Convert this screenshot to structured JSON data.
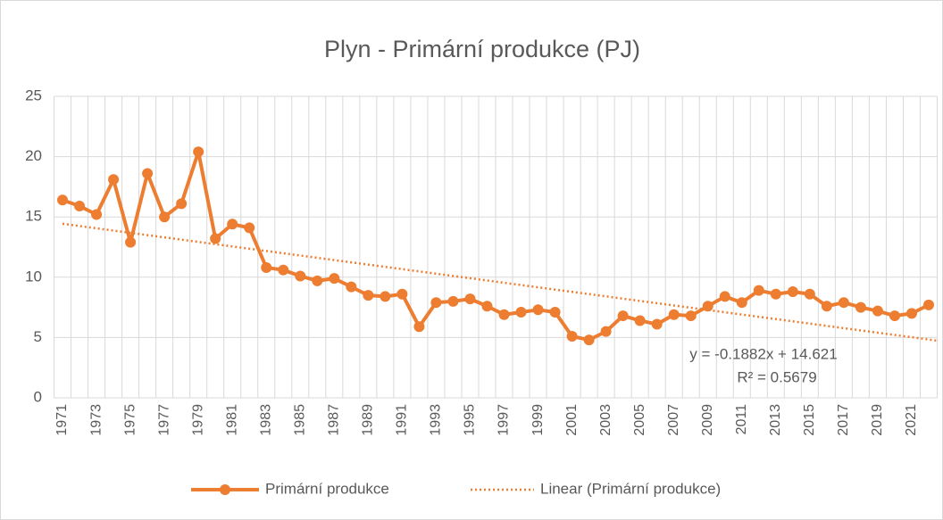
{
  "chart_data": {
    "type": "line",
    "title": "Plyn - Primární produkce (PJ)",
    "categories": [
      "1971",
      null,
      "1973",
      null,
      "1975",
      null,
      "1977",
      null,
      "1979",
      null,
      "1981",
      null,
      "1983",
      null,
      "1985",
      null,
      "1987",
      null,
      "1989",
      null,
      "1991",
      null,
      "1993",
      null,
      "1995",
      null,
      "1997",
      null,
      "1999",
      null,
      "2001",
      null,
      "2003",
      null,
      "2005",
      null,
      "2007",
      null,
      "2009",
      null,
      "2011",
      null,
      "2013",
      null,
      "2015",
      null,
      "2017",
      null,
      "2019",
      null,
      "2021",
      null
    ],
    "series": [
      {
        "name": "Primární produkce",
        "color": "#ed7d31",
        "values": [
          16.4,
          15.9,
          15.2,
          18.1,
          12.9,
          18.6,
          15.0,
          16.1,
          20.4,
          13.2,
          14.4,
          14.1,
          10.8,
          10.6,
          10.1,
          9.7,
          9.9,
          9.2,
          8.5,
          8.4,
          8.6,
          5.9,
          7.9,
          8.0,
          8.2,
          7.6,
          6.9,
          7.1,
          7.3,
          7.1,
          5.1,
          4.8,
          5.5,
          6.8,
          6.4,
          6.1,
          6.9,
          6.8,
          7.6,
          8.4,
          7.9,
          8.9,
          8.6,
          8.8,
          8.6,
          7.6,
          7.9,
          7.5,
          7.2,
          6.8,
          7.0,
          7.7
        ]
      }
    ],
    "trendline": {
      "name": "Linear (Primární produkce)",
      "color": "#ed7d31",
      "slope": -0.1882,
      "intercept": 14.621,
      "equation": "y = -0.1882x + 14.621",
      "r2_label": "R² = 0.5679"
    },
    "ylim": [
      0,
      25
    ],
    "yticks": [
      0,
      5,
      10,
      15,
      20,
      25
    ],
    "grid": true,
    "legend": "bottom"
  }
}
